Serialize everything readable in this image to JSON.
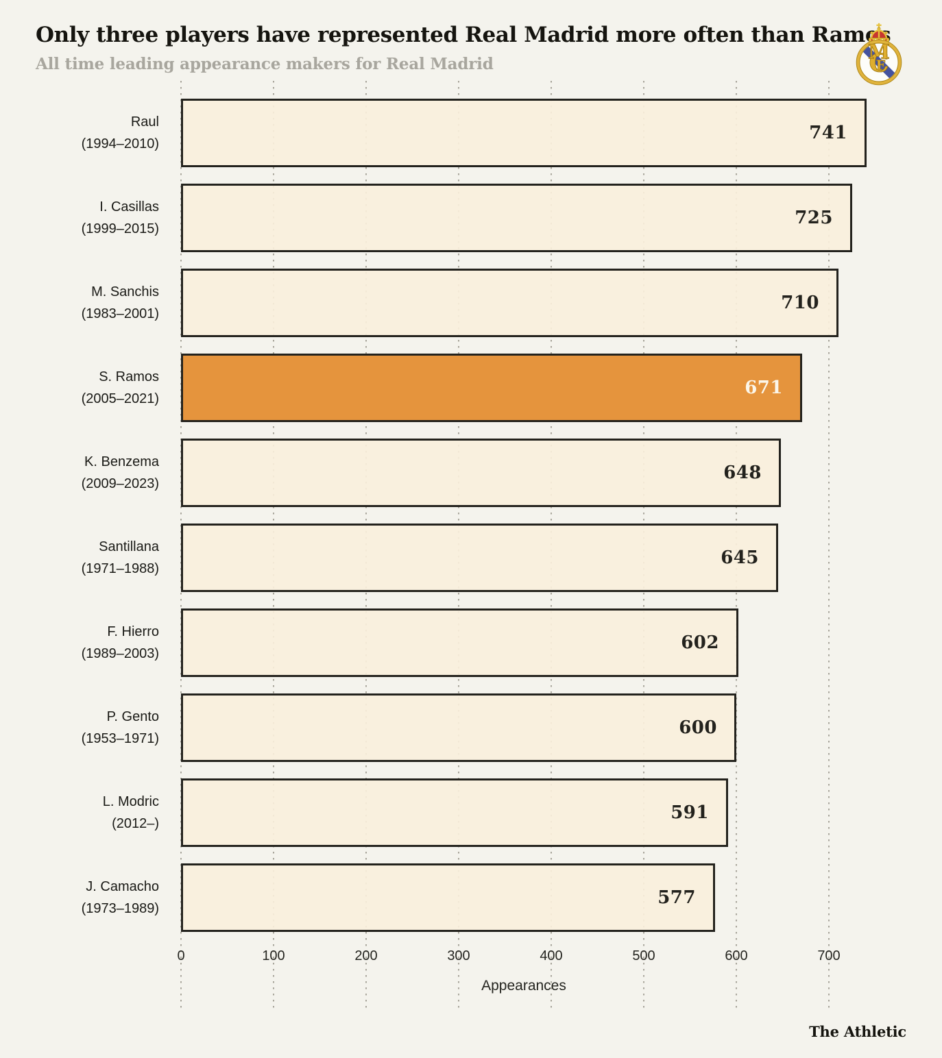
{
  "header": {
    "logo_icon": "real-madrid-crest"
  },
  "chart_data": {
    "type": "bar",
    "orientation": "horizontal",
    "title": "Only three players have represented Real Madrid more often than Ramos",
    "subtitle": "All time leading appearance makers for Real Madrid",
    "xlabel": "Appearances",
    "x_ticks": [
      0,
      100,
      200,
      300,
      400,
      500,
      600,
      700
    ],
    "xlim": [
      0,
      760
    ],
    "grid": "vertical-dotted",
    "legend": "none",
    "value_labels": "inside-end",
    "categories": [
      "Raul",
      "I. Casillas",
      "M. Sanchis",
      "S. Ramos",
      "K. Benzema",
      "Santillana",
      "F. Hierro",
      "P. Gento",
      "L. Modric",
      "J. Camacho"
    ],
    "players": [
      {
        "name": "Raul",
        "years": "(1994–2010)",
        "value": 741,
        "highlight": false
      },
      {
        "name": "I. Casillas",
        "years": "(1999–2015)",
        "value": 725,
        "highlight": false
      },
      {
        "name": "M. Sanchis",
        "years": "(1983–2001)",
        "value": 710,
        "highlight": false
      },
      {
        "name": "S. Ramos",
        "years": "(2005–2021)",
        "value": 671,
        "highlight": true
      },
      {
        "name": "K. Benzema",
        "years": "(2009–2023)",
        "value": 648,
        "highlight": false
      },
      {
        "name": "Santillana",
        "years": "(1971–1988)",
        "value": 645,
        "highlight": false
      },
      {
        "name": "F. Hierro",
        "years": "(1989–2003)",
        "value": 602,
        "highlight": false
      },
      {
        "name": "P. Gento",
        "years": "(1953–1971)",
        "value": 600,
        "highlight": false
      },
      {
        "name": "L. Modric",
        "years": "(2012–)",
        "value": 591,
        "highlight": false
      },
      {
        "name": "J. Camacho",
        "years": "(1973–1989)",
        "value": 577,
        "highlight": false
      }
    ],
    "highlighted_player": "S. Ramos",
    "colors": {
      "background": "#f4f3ed",
      "bar_fill": "#f9efdc",
      "bar_border": "#23221d",
      "highlight_fill": "#e5943d",
      "value_text": "#23221d",
      "highlight_value_text": "#fbf6ea",
      "subtitle_text": "#a8a69e",
      "gridline": "#a8a59b"
    }
  },
  "footer": {
    "brand": "The Athletic"
  }
}
